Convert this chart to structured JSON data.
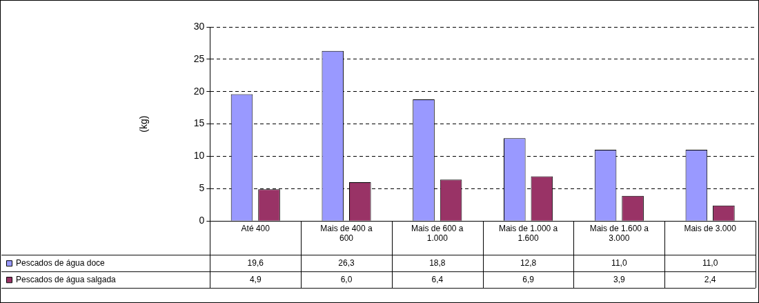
{
  "chart_data": {
    "type": "bar",
    "ylabel": "(kg)",
    "categories": [
      "Até 400",
      "Mais de 400 a 600",
      "Mais de 600 a 1.000",
      "Mais de 1.000 a 1.600",
      "Mais de 1.600 a 3.000",
      "Mais de 3.000"
    ],
    "series": [
      {
        "name": "Pescados de água doce",
        "color": "#9999ff",
        "values": [
          19.6,
          26.3,
          18.8,
          12.8,
          11.0,
          11.0
        ],
        "value_labels": [
          "19,6",
          "26,3",
          "18,8",
          "12,8",
          "11,0",
          "11,0"
        ]
      },
      {
        "name": "Pescados de água salgada",
        "color": "#993366",
        "values": [
          4.9,
          6.0,
          6.4,
          6.9,
          3.9,
          2.4
        ],
        "value_labels": [
          "4,9",
          "6,0",
          "6,4",
          "6,9",
          "3,9",
          "2,4"
        ]
      }
    ],
    "ylim": [
      0,
      30
    ],
    "yticks": [
      0,
      5,
      10,
      15,
      20,
      25,
      30
    ],
    "grid": "y",
    "legend": "bottom"
  }
}
